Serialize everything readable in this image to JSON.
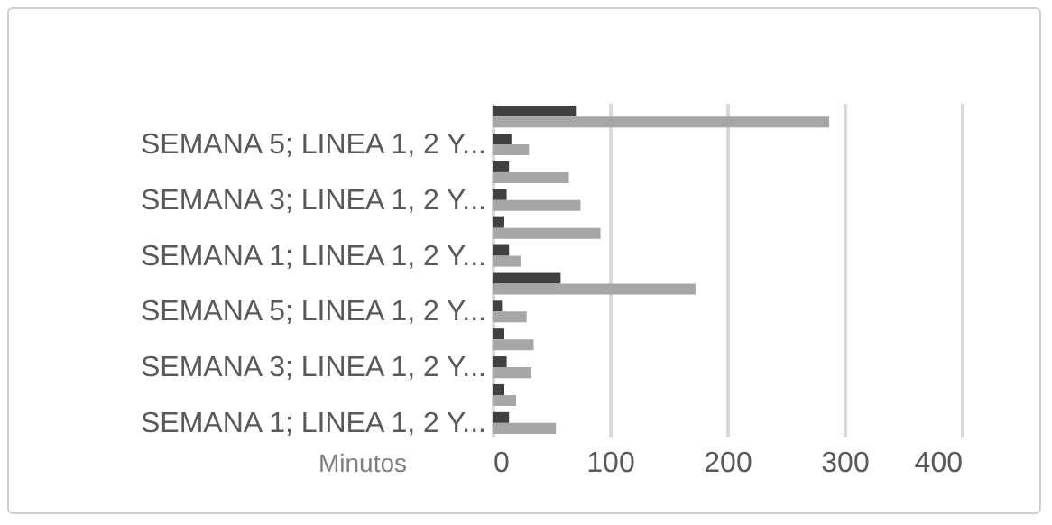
{
  "chart_data": {
    "type": "bar",
    "orientation": "horizontal",
    "xlabel": "Minutos",
    "categories": [
      null,
      "SEMANA 5; LINEA 1, 2 Y...",
      null,
      "SEMANA 3; LINEA 1, 2 Y...",
      null,
      "SEMANA 1; LINEA 1, 2 Y...",
      null,
      "SEMANA 5; LINEA 1, 2 Y...",
      null,
      "SEMANA 3; LINEA 1, 2 Y...",
      null,
      "SEMANA 1; LINEA 1, 2 Y..."
    ],
    "series": [
      {
        "color": "#404040",
        "values": [
          71,
          16,
          14,
          12,
          10,
          14,
          58,
          8,
          10,
          12,
          10,
          14
        ]
      },
      {
        "color": "#a6a6a6",
        "values": [
          287,
          31,
          65,
          75,
          92,
          24,
          173,
          29,
          35,
          33,
          20,
          54
        ]
      }
    ],
    "xlim": [
      0,
      400
    ],
    "xticks": [
      0,
      100,
      200,
      300,
      400
    ],
    "grid": "x",
    "legend": false
  }
}
